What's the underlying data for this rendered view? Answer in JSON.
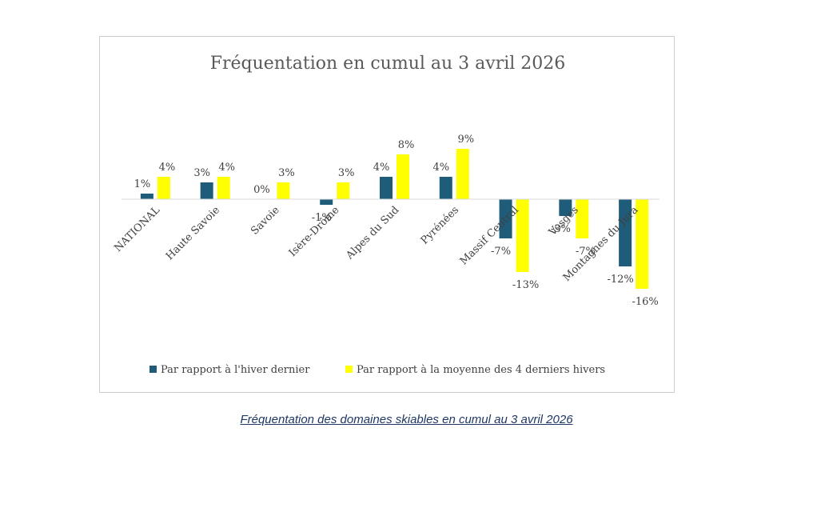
{
  "caption": "Fréquentation des domaines skiables en cumul au 3 avril 2026",
  "chart_data": {
    "type": "bar",
    "title": "Fréquentation en cumul au 3 avril 2026",
    "categories": [
      "NATIONAL",
      "Haute Savoie",
      "Savoie",
      "Isère-Drôme",
      "Alpes du Sud",
      "Pyrénées",
      "Massif Central",
      "Vosges",
      "Montagnes du Jura"
    ],
    "series": [
      {
        "name": "Par rapport à l'hiver dernier",
        "color": "#1f5c7a",
        "values": [
          1,
          3,
          0,
          -1,
          4,
          4,
          -7,
          -3,
          -12
        ],
        "labels": [
          "1%",
          "3%",
          "0%",
          "-1%",
          "4%",
          "4%",
          "-7%",
          "-3%",
          "-12%"
        ]
      },
      {
        "name": "Par rapport à la moyenne des 4 derniers hivers",
        "color": "#ffff00",
        "values": [
          4,
          4,
          3,
          3,
          8,
          9,
          -13,
          -7,
          -16
        ],
        "labels": [
          "4%",
          "4%",
          "3%",
          "3%",
          "8%",
          "9%",
          "-13%",
          "-7%",
          "-16%"
        ]
      }
    ],
    "ylim": [
      -16,
      9
    ],
    "grid": false,
    "legend_position": "bottom"
  }
}
